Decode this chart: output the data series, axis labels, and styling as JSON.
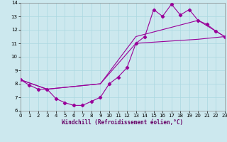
{
  "xlabel": "Windchill (Refroidissement éolien,°C)",
  "bg_color": "#cce8ee",
  "line_color": "#990099",
  "xlim": [
    0,
    23
  ],
  "ylim": [
    6,
    14
  ],
  "xticks": [
    0,
    1,
    2,
    3,
    4,
    5,
    6,
    7,
    8,
    9,
    10,
    11,
    12,
    13,
    14,
    15,
    16,
    17,
    18,
    19,
    20,
    21,
    22,
    23
  ],
  "yticks": [
    6,
    7,
    8,
    9,
    10,
    11,
    12,
    13,
    14
  ],
  "curve1_x": [
    0,
    1,
    2,
    3,
    4,
    5,
    6,
    7,
    8,
    9,
    10,
    11,
    12,
    13,
    14,
    15,
    16,
    17,
    18,
    19,
    20,
    21,
    22,
    23
  ],
  "curve1_y": [
    8.3,
    7.9,
    7.6,
    7.6,
    6.9,
    6.6,
    6.4,
    6.4,
    6.7,
    7.0,
    8.0,
    8.5,
    9.2,
    11.0,
    11.5,
    13.5,
    13.0,
    13.9,
    13.1,
    13.5,
    12.7,
    12.4,
    11.9,
    11.5
  ],
  "curve2_x": [
    0,
    3,
    9,
    13,
    20,
    23
  ],
  "curve2_y": [
    8.3,
    7.6,
    8.0,
    11.5,
    12.7,
    11.5
  ],
  "curve3_x": [
    0,
    3,
    9,
    13,
    20,
    23
  ],
  "curve3_y": [
    8.3,
    7.6,
    8.0,
    11.0,
    11.3,
    11.5
  ]
}
